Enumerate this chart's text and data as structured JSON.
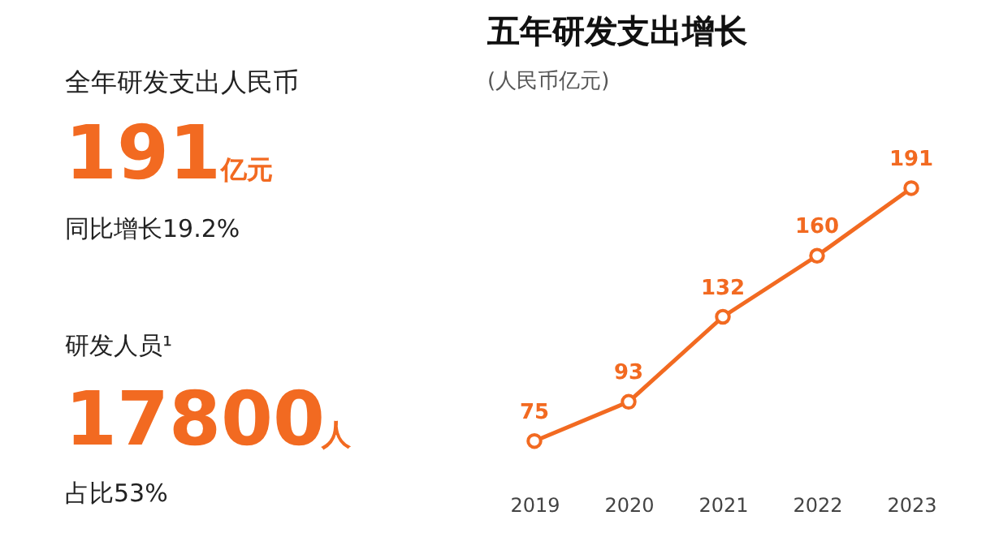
{
  "chart_data": [
    {
      "type": "other",
      "annotations": [
        "全年研发支出人民币",
        "191",
        "亿元",
        "同比增长19.2%",
        "研发人员¹",
        "17800",
        "人",
        "占比53%"
      ]
    },
    {
      "type": "line",
      "title": "五年研发支出增长",
      "subtitle": "(人民币亿元)",
      "categories": [
        "2019",
        "2020",
        "2021",
        "2022",
        "2023"
      ],
      "values": [
        75,
        93,
        132,
        160,
        191
      ],
      "color": "#f26a21",
      "marker": "circle",
      "data_labels": true
    }
  ]
}
